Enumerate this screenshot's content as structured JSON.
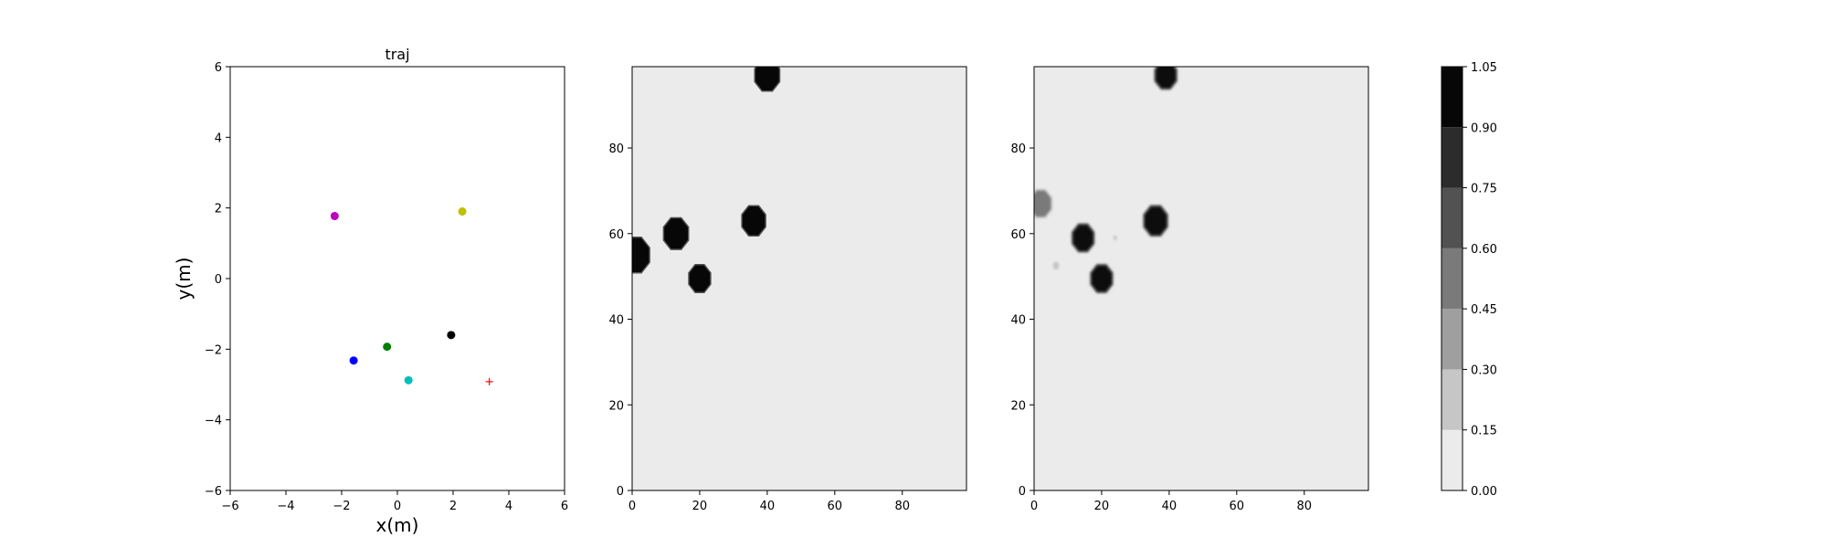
{
  "chart_data": [
    {
      "type": "scatter",
      "title": "traj",
      "xlabel": "x(m)",
      "ylabel": "y(m)",
      "xlim": [
        -6,
        6
      ],
      "ylim": [
        -6,
        6
      ],
      "xticks": [
        "−6",
        "−4",
        "−2",
        "0",
        "2",
        "4",
        "6"
      ],
      "yticks": [
        "−6",
        "−4",
        "−2",
        "0",
        "2",
        "4",
        "6"
      ],
      "grid": false,
      "points": [
        {
          "x": -2.25,
          "y": 1.77,
          "color": "#bf00bf",
          "marker": "circle"
        },
        {
          "x": 2.33,
          "y": 1.9,
          "color": "#bfbf00",
          "marker": "circle"
        },
        {
          "x": -1.57,
          "y": -2.32,
          "color": "#0000ff",
          "marker": "circle"
        },
        {
          "x": -0.37,
          "y": -1.93,
          "color": "#008000",
          "marker": "circle"
        },
        {
          "x": 1.93,
          "y": -1.6,
          "color": "#000000",
          "marker": "circle"
        },
        {
          "x": 0.4,
          "y": -2.88,
          "color": "#00bfbf",
          "marker": "circle"
        },
        {
          "x": 3.3,
          "y": -2.92,
          "color": "#ff0000",
          "marker": "plus"
        }
      ]
    },
    {
      "type": "heatmap",
      "xlim": [
        0,
        99
      ],
      "ylim": [
        0,
        99
      ],
      "xticks": [
        "0",
        "20",
        "40",
        "60",
        "80"
      ],
      "yticks": [
        "0",
        "20",
        "40",
        "60",
        "80"
      ],
      "background_level": 0.05,
      "blobs": [
        {
          "x": 40,
          "y": 97,
          "r": 4,
          "level": 1.0
        },
        {
          "x": 1,
          "y": 55,
          "r": 4.5,
          "level": 1.0
        },
        {
          "x": 13,
          "y": 60,
          "r": 4,
          "level": 1.0
        },
        {
          "x": 20,
          "y": 49.5,
          "r": 3.5,
          "level": 1.0
        },
        {
          "x": 36,
          "y": 63,
          "r": 3.8,
          "level": 1.0
        }
      ]
    },
    {
      "type": "heatmap",
      "xlim": [
        0,
        99
      ],
      "ylim": [
        0,
        99
      ],
      "xticks": [
        "0",
        "20",
        "40",
        "60",
        "80"
      ],
      "yticks": [
        "0",
        "20",
        "40",
        "60",
        "80"
      ],
      "background_level": 0.05,
      "blobs": [
        {
          "x": 39,
          "y": 97,
          "r": 3.5,
          "level": 1.0
        },
        {
          "x": 2,
          "y": 67,
          "r": 3.5,
          "level": 0.45
        },
        {
          "x": 14.5,
          "y": 59,
          "r": 3.5,
          "level": 1.0
        },
        {
          "x": 20,
          "y": 49.5,
          "r": 3.5,
          "level": 1.0
        },
        {
          "x": 36,
          "y": 63,
          "r": 3.8,
          "level": 1.0
        },
        {
          "x": 24,
          "y": 59,
          "r": 0.8,
          "level": 0.2
        },
        {
          "x": 6.5,
          "y": 52.5,
          "r": 1.2,
          "level": 0.2
        }
      ]
    },
    {
      "type": "colorbar",
      "levels": [
        "0.00",
        "0.15",
        "0.30",
        "0.45",
        "0.60",
        "0.75",
        "0.90",
        "1.05"
      ],
      "colors": [
        "#ebebeb",
        "#c6c6c6",
        "#9f9f9f",
        "#7a7a7a",
        "#525252",
        "#2c2c2c",
        "#070707"
      ]
    }
  ]
}
